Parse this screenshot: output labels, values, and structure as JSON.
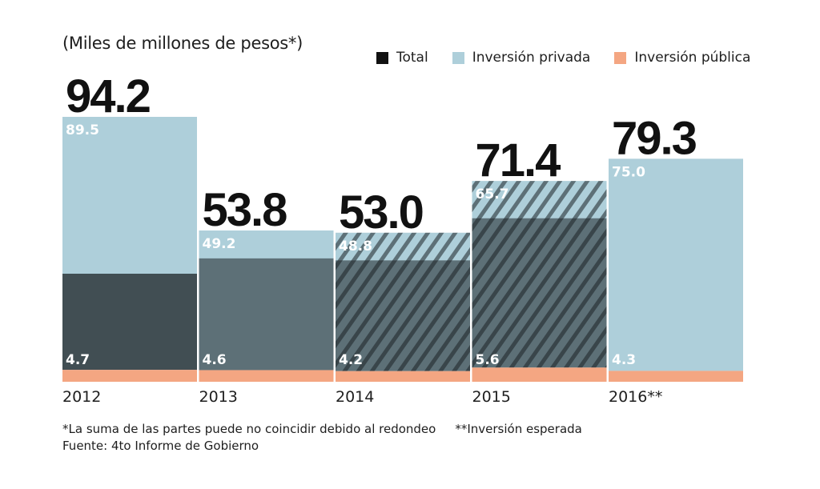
{
  "chart_data": {
    "type": "bar",
    "stacked": true,
    "title": "",
    "subtitle": "(Miles de millones de pesos*)",
    "xlabel": "",
    "ylabel": "",
    "categories": [
      "2012",
      "2013",
      "2014",
      "2015",
      "2016**"
    ],
    "totals": [
      94.2,
      53.8,
      53.0,
      71.4,
      79.3
    ],
    "series": [
      {
        "name": "Inversión privada",
        "key": "privada",
        "color": "#aecfda",
        "values": [
          89.5,
          49.2,
          48.8,
          65.7,
          75.0
        ]
      },
      {
        "name": "Inversión pública",
        "key": "publica",
        "color": "#f4a682",
        "values": [
          4.7,
          4.6,
          4.2,
          5.6,
          4.3
        ]
      }
    ],
    "legend": {
      "position": "top-right",
      "items": [
        {
          "label": "Total",
          "color": "#111111"
        },
        {
          "label": "Inversión privada",
          "color": "#aecfda"
        },
        {
          "label": "Inversión pública",
          "color": "#f4a682"
        }
      ]
    },
    "ylim": [
      0,
      94.2
    ],
    "grid": false
  },
  "notes": {
    "rounding": "*La suma de las partes puede no coincidir debido al redondeo",
    "expected": "**Inversión esperada",
    "source": "Fuente: 4to Informe de Gobierno"
  },
  "colors": {
    "total": "#111111",
    "privada": "#aecfda",
    "publica": "#f4a682",
    "photo_dark": "#1c2326"
  }
}
